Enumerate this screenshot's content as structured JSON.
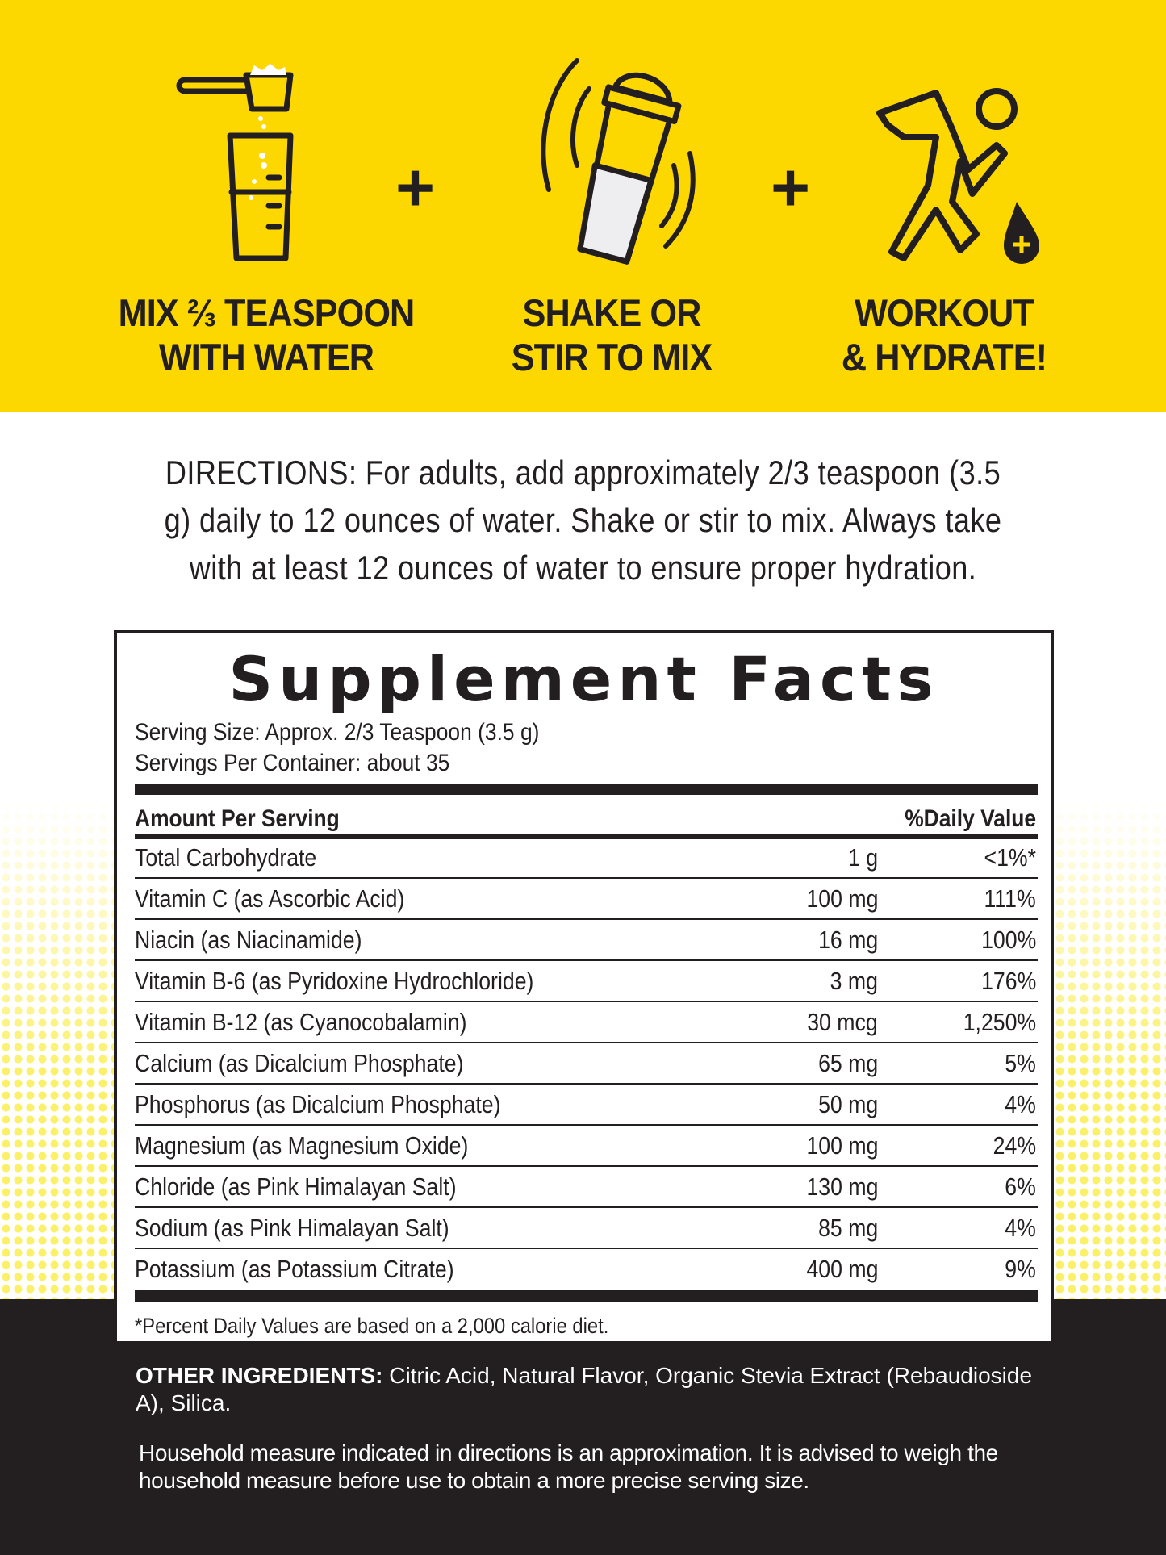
{
  "colors": {
    "brand_yellow": "#FDD800",
    "dark": "#231f20"
  },
  "steps": [
    {
      "icon": "scoop-glass-icon",
      "line1": "MIX ⅔ TEASPOON",
      "line2": "WITH WATER"
    },
    {
      "icon": "shaker-bottle-icon",
      "line1": "SHAKE OR",
      "line2": "STIR TO MIX"
    },
    {
      "icon": "runner-hydrate-icon",
      "line1": "WORKOUT",
      "line2": "& HYDRATE!"
    }
  ],
  "plus_symbol": "+",
  "directions": {
    "label": "DIRECTIONS:",
    "text": " For adults, add approximately 2/3 teaspoon (3.5 g) daily to 12 ounces of water. Shake or stir to mix. Always take with at least 12 ounces of water to ensure proper hydration."
  },
  "facts": {
    "title": "Supplement Facts",
    "serving_size": "Serving Size: Approx. 2/3 Teaspoon (3.5 g)",
    "servings_per_container": "Servings Per Container: about 35",
    "header_amount": "Amount Per Serving",
    "header_dv": "%Daily Value",
    "rows": [
      {
        "name": "Total Carbohydrate",
        "amount": "1 g",
        "dv": "<1%*"
      },
      {
        "name": "Vitamin C (as Ascorbic Acid)",
        "amount": "100 mg",
        "dv": "111%"
      },
      {
        "name": "Niacin (as Niacinamide)",
        "amount": "16 mg",
        "dv": "100%"
      },
      {
        "name": "Vitamin B-6 (as Pyridoxine Hydrochloride)",
        "amount": "3 mg",
        "dv": "176%"
      },
      {
        "name": "Vitamin B-12 (as Cyanocobalamin)",
        "amount": "30 mcg",
        "dv": "1,250%"
      },
      {
        "name": "Calcium (as Dicalcium Phosphate)",
        "amount": "65 mg",
        "dv": "5%"
      },
      {
        "name": "Phosphorus (as Dicalcium Phosphate)",
        "amount": "50 mg",
        "dv": "4%"
      },
      {
        "name": "Magnesium (as Magnesium Oxide)",
        "amount": "100 mg",
        "dv": "24%"
      },
      {
        "name": "Chloride (as Pink Himalayan Salt)",
        "amount": "130 mg",
        "dv": "6%"
      },
      {
        "name": "Sodium (as Pink Himalayan Salt)",
        "amount": "85 mg",
        "dv": "4%"
      },
      {
        "name": "Potassium (as Potassium Citrate)",
        "amount": "400 mg",
        "dv": "9%"
      }
    ],
    "footnote": "*Percent Daily Values are based on a 2,000 calorie diet."
  },
  "other_ingredients": {
    "label": "OTHER INGREDIENTS:",
    "text": " Citric Acid, Natural Flavor, Organic Stevia Extract (Rebaudioside A), Silica."
  },
  "household_note": "Household measure indicated in directions is an approximation. It is advised to weigh the household measure before use to obtain a more precise serving size."
}
